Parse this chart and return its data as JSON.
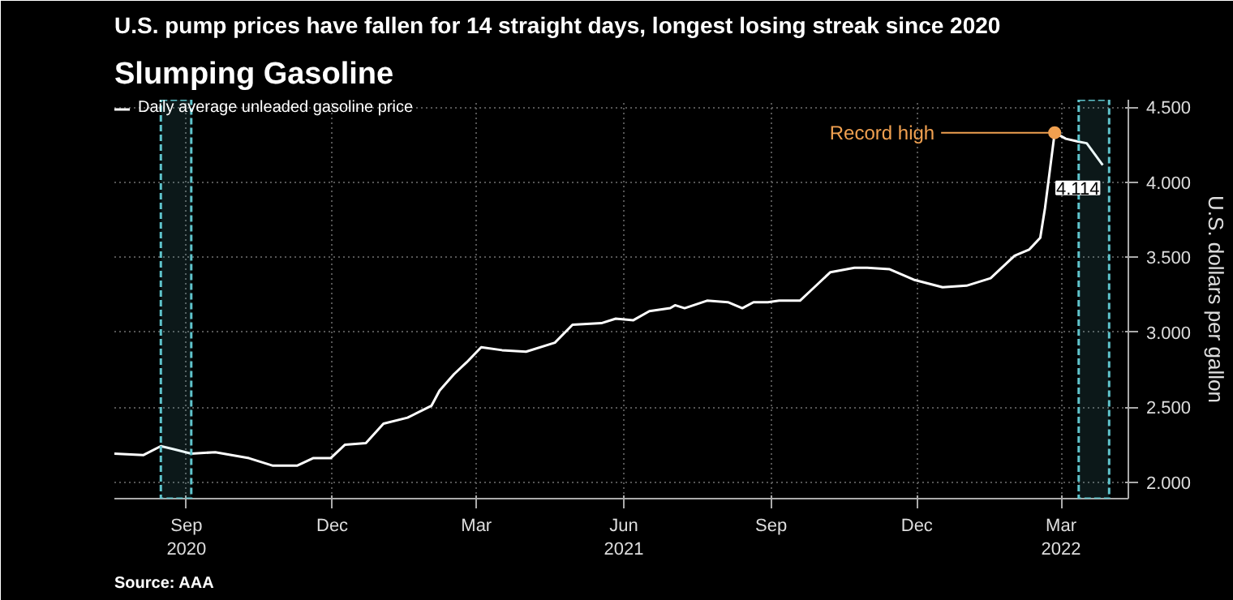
{
  "chart_data": {
    "type": "line",
    "title": "Slumping Gasoline",
    "subtitle": "U.S. pump prices have fallen for 14 straight days, longest losing streak since 2020",
    "ylabel": "U.S. dollars per gallon",
    "x": [
      "2020-08-01",
      "2020-08-19",
      "2020-08-30",
      "2020-09-07",
      "2020-09-18",
      "2020-10-03",
      "2020-10-24",
      "2020-11-08",
      "2020-11-23",
      "2020-12-03",
      "2020-12-14",
      "2020-12-23",
      "2021-01-05",
      "2021-01-16",
      "2021-01-31",
      "2021-02-15",
      "2021-02-20",
      "2021-03-01",
      "2021-03-09",
      "2021-03-18",
      "2021-03-31",
      "2021-04-15",
      "2021-05-03",
      "2021-05-14",
      "2021-06-01",
      "2021-06-10",
      "2021-06-21",
      "2021-07-01",
      "2021-07-14",
      "2021-07-17",
      "2021-07-23",
      "2021-08-06",
      "2021-08-19",
      "2021-08-28",
      "2021-09-04",
      "2021-09-13",
      "2021-09-20",
      "2021-10-03",
      "2021-10-09",
      "2021-10-22",
      "2021-11-06",
      "2021-11-14",
      "2021-11-28",
      "2021-12-13",
      "2021-12-31",
      "2022-01-15",
      "2022-01-30",
      "2022-02-06",
      "2022-02-14",
      "2022-02-23",
      "2022-03-02",
      "2022-03-05",
      "2022-03-11",
      "2022-03-18",
      "2022-03-26",
      "2022-03-31",
      "2022-04-10"
    ],
    "series": [
      {
        "name": "Daily average unleaded gasoline price",
        "color": "#ffffff",
        "values": [
          2.19,
          2.18,
          2.24,
          2.22,
          2.19,
          2.2,
          2.16,
          2.11,
          2.11,
          2.16,
          2.16,
          2.25,
          2.26,
          2.39,
          2.43,
          2.51,
          2.61,
          2.72,
          2.8,
          2.9,
          2.88,
          2.87,
          2.93,
          3.05,
          3.06,
          3.09,
          3.08,
          3.14,
          3.16,
          3.18,
          3.16,
          3.21,
          3.2,
          3.16,
          3.2,
          3.2,
          3.21,
          3.21,
          3.27,
          3.4,
          3.43,
          3.43,
          3.42,
          3.35,
          3.3,
          3.31,
          3.36,
          3.43,
          3.51,
          3.55,
          3.63,
          3.83,
          4.33,
          4.29,
          4.27,
          4.26,
          4.114
        ]
      }
    ],
    "xlim": [
      "2020-08-01",
      "2022-04-26"
    ],
    "xticks": [
      {
        "value": "2020-09-15",
        "label": "Sep\n2020"
      },
      {
        "value": "2020-12-15",
        "label": "Dec"
      },
      {
        "value": "2021-03-15",
        "label": "Mar"
      },
      {
        "value": "2021-06-15",
        "label": "Jun\n2021"
      },
      {
        "value": "2021-09-15",
        "label": "Sep"
      },
      {
        "value": "2021-12-15",
        "label": "Dec"
      },
      {
        "value": "2022-03-15",
        "label": "Mar\n2022"
      }
    ],
    "ylim": [
      1.89,
      4.55
    ],
    "yticks": [
      {
        "value": 2,
        "label": "2.000"
      },
      {
        "value": 2.5,
        "label": "2.500"
      },
      {
        "value": 3,
        "label": "3.000"
      },
      {
        "value": 3.5,
        "label": "3.500"
      },
      {
        "value": 4,
        "label": "4.000"
      },
      {
        "value": 4.5,
        "label": "4.500"
      }
    ],
    "bands": [
      {
        "axis": "x",
        "from": "2020-08-30",
        "to": "2020-09-18",
        "color": "#5fc4cc"
      },
      {
        "axis": "x",
        "from": "2022-03-26",
        "to": "2022-04-14",
        "color": "#5fc4cc"
      }
    ],
    "annotations": [
      {
        "text": "Record high",
        "x": "2022-03-11",
        "y": 4.33
      },
      {
        "text": "4.114",
        "x": "2022-04-10",
        "y": 4.114
      },
      "Source: AAA"
    ],
    "grid": true,
    "legend": "top left"
  }
}
